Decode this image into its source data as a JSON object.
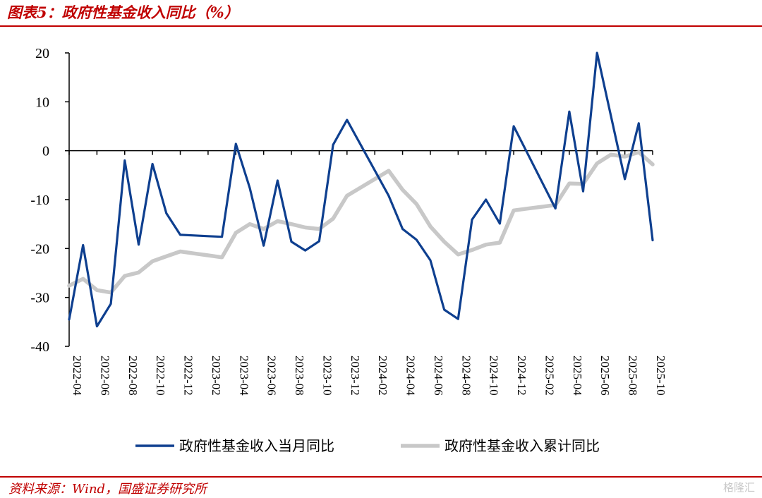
{
  "header": {
    "title": "图表5：政府性基金收入同比（%）"
  },
  "footer": {
    "source": "资料来源：Wind，国盛证券研究所",
    "watermark": "格隆汇"
  },
  "chart_data": {
    "type": "line",
    "title": "",
    "xlabel": "",
    "ylabel": "",
    "ylim": [
      -40,
      20
    ],
    "yticks": [
      20,
      10,
      0,
      -10,
      -20,
      -30,
      -40
    ],
    "x": [
      "2022-04",
      "2022-05",
      "2022-06",
      "2022-07",
      "2022-08",
      "2022-09",
      "2022-10",
      "2022-11",
      "2022-12",
      "2023-01",
      "2023-02",
      "2023-03",
      "2023-04",
      "2023-05",
      "2023-06",
      "2023-07",
      "2023-08",
      "2023-09",
      "2023-10",
      "2023-11",
      "2023-12",
      "2024-01",
      "2024-02",
      "2024-03",
      "2024-04",
      "2024-05",
      "2024-06",
      "2024-07",
      "2024-08",
      "2024-09",
      "2024-10",
      "2024-11",
      "2024-12",
      "2025-01",
      "2025-02",
      "2025-03",
      "2025-04",
      "2025-05",
      "2025-06",
      "2025-07",
      "2025-08",
      "2025-09",
      "2025-10"
    ],
    "xtick_labels": [
      "2022-04",
      "2022-06",
      "2022-08",
      "2022-10",
      "2022-12",
      "2023-02",
      "2023-04",
      "2023-06",
      "2023-08",
      "2023-10",
      "2023-12",
      "2024-02",
      "2024-04",
      "2024-06",
      "2024-08",
      "2024-10",
      "2024-12",
      "2025-02",
      "2025-04",
      "2025-06",
      "2025-08",
      "2025-10"
    ],
    "series": [
      {
        "name": "政府性基金收入当月同比",
        "color": "#0e3f8f",
        "values": [
          -34.5,
          -19.3,
          -35.9,
          -31.3,
          -2.0,
          -19.2,
          -2.7,
          -12.8,
          -17.2,
          null,
          null,
          -17.6,
          1.4,
          -7.6,
          -19.4,
          -6.1,
          -18.6,
          -20.4,
          -18.5,
          1.2,
          6.3,
          null,
          null,
          -9.2,
          -16.0,
          -18.2,
          -22.4,
          -32.5,
          -34.4,
          -14.1,
          -10.0,
          -14.9,
          5.0,
          null,
          null,
          -11.8,
          8.0,
          -8.3,
          20.0,
          null,
          -5.8,
          5.6,
          -18.3
        ]
      },
      {
        "name": "政府性基金收入累计同比",
        "color": "#c8c8c8",
        "values": [
          -27.6,
          -26.2,
          -28.5,
          -29.0,
          -25.6,
          -24.9,
          -22.6,
          -21.6,
          -20.6,
          null,
          null,
          -21.8,
          -16.8,
          -15.0,
          -16.0,
          -14.4,
          -15.0,
          -15.7,
          -16.0,
          -13.9,
          -9.2,
          null,
          null,
          -4.1,
          -8.0,
          -10.9,
          -15.5,
          -18.6,
          -21.2,
          -20.3,
          -19.2,
          -18.8,
          -12.2,
          null,
          null,
          -11.1,
          -6.7,
          -6.8,
          -2.6,
          -0.8,
          -1.2,
          -0.3,
          -2.8
        ]
      }
    ],
    "legend_position": "bottom"
  }
}
